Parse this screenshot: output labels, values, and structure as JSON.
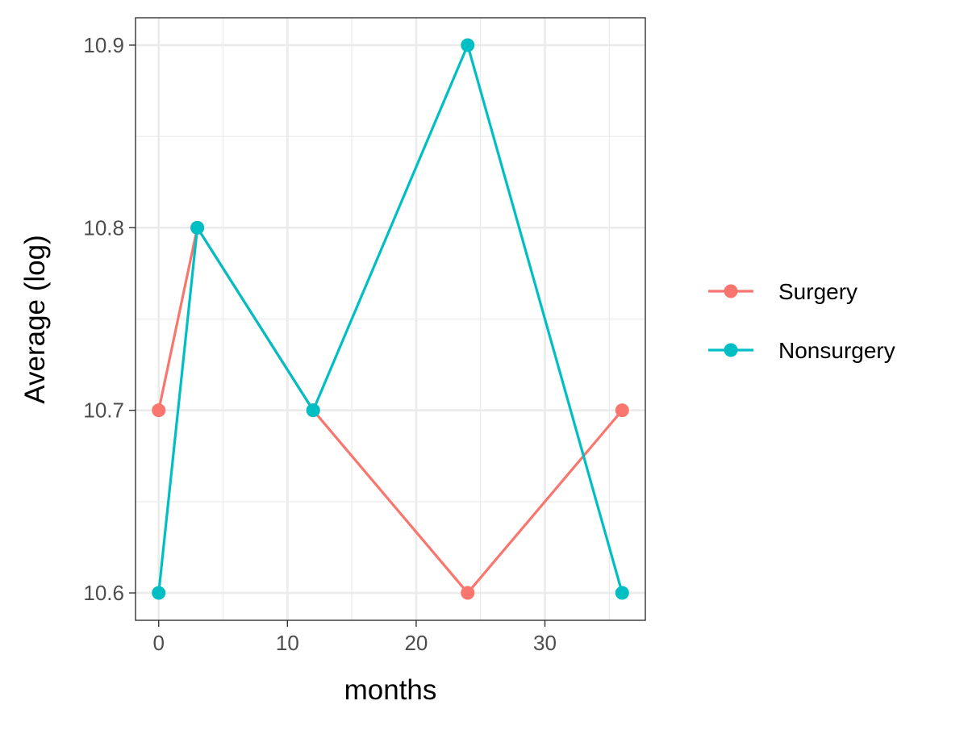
{
  "chart_data": {
    "type": "line",
    "title": "",
    "xlabel": "months",
    "ylabel": "Average (log)",
    "xlim": [
      -1.8,
      37.8
    ],
    "ylim": [
      10.585,
      10.915
    ],
    "x_ticks": [
      0,
      10,
      20,
      30
    ],
    "x_tick_labels": [
      "0",
      "10",
      "20",
      "30"
    ],
    "y_ticks": [
      10.6,
      10.7,
      10.8,
      10.9
    ],
    "y_tick_labels": [
      "10.6",
      "10.7",
      "10.8",
      "10.9"
    ],
    "x_minor_ticks": [
      5,
      15,
      25,
      35
    ],
    "y_minor_ticks": [
      10.65,
      10.75,
      10.85
    ],
    "grid": true,
    "legend_position": "right",
    "series": [
      {
        "name": "Surgery",
        "color": "#F8766D",
        "x": [
          0,
          3,
          12,
          24,
          36
        ],
        "y": [
          10.7,
          10.8,
          10.7,
          10.6,
          10.7
        ]
      },
      {
        "name": "Nonsurgery",
        "color": "#00BFC4",
        "x": [
          0,
          3,
          12,
          24,
          36
        ],
        "y": [
          10.6,
          10.8,
          10.7,
          10.9,
          10.6
        ]
      }
    ]
  }
}
